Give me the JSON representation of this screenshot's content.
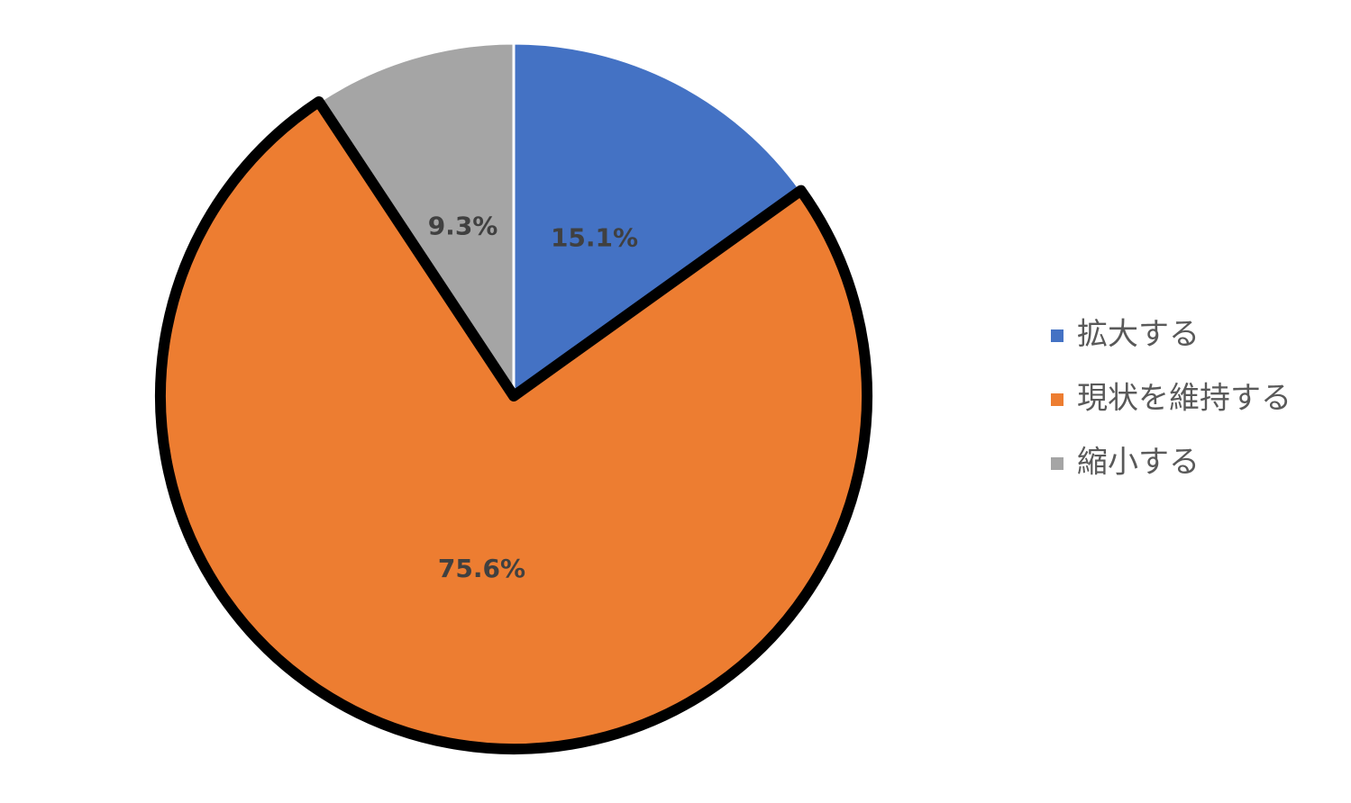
{
  "chart_data": {
    "type": "pie",
    "categories": [
      "拡大する",
      "現状を維持する",
      "縮小する"
    ],
    "values": [
      15.1,
      75.6,
      9.3
    ],
    "value_labels": [
      "15.1%",
      "75.6%",
      "9.3%"
    ],
    "colors": [
      "#4472c4",
      "#ed7d31",
      "#a5a5a5"
    ],
    "highlight": 1,
    "legend": "right"
  }
}
